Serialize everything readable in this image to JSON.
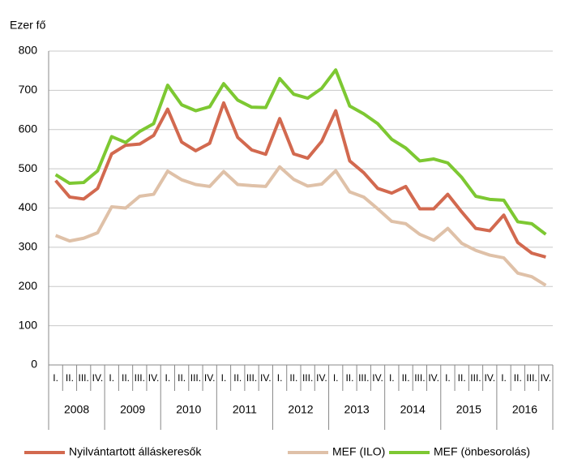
{
  "chart_data": {
    "type": "line",
    "y_label": "Ezer fő",
    "categories": [
      "I.",
      "II.",
      "III.",
      "IV.",
      "I.",
      "II.",
      "III.",
      "IV.",
      "I.",
      "II.",
      "III.",
      "IV.",
      "I.",
      "II.",
      "III.",
      "IV.",
      "I.",
      "II.",
      "III.",
      "IV.",
      "I.",
      "II.",
      "III.",
      "IV.",
      "I.",
      "II.",
      "III.",
      "IV.",
      "I.",
      "II.",
      "III.",
      "IV.",
      "I.",
      "II.",
      "III.",
      "IV."
    ],
    "years": [
      "2008",
      "2009",
      "2010",
      "2011",
      "2012",
      "2013",
      "2014",
      "2015",
      "2016"
    ],
    "series": [
      {
        "name": "Nyilvántartott álláskeresők",
        "color": "#d2694f",
        "values": [
          470,
          428,
          423,
          450,
          538,
          560,
          563,
          585,
          652,
          568,
          546,
          565,
          668,
          580,
          548,
          537,
          628,
          538,
          527,
          570,
          648,
          520,
          490,
          450,
          438,
          455,
          398,
          398,
          435,
          390,
          348,
          342,
          382,
          312,
          285,
          275
        ]
      },
      {
        "name": "MEF (ILO)",
        "color": "#dfc1a8",
        "values": [
          330,
          316,
          323,
          337,
          403,
          400,
          430,
          435,
          494,
          472,
          460,
          455,
          493,
          460,
          457,
          455,
          505,
          473,
          456,
          461,
          495,
          441,
          428,
          398,
          366,
          360,
          333,
          318,
          348,
          310,
          292,
          280,
          273,
          234,
          225,
          203
        ]
      },
      {
        "name": "MEF (önbesorolás)",
        "color": "#7dc832",
        "values": [
          485,
          463,
          465,
          495,
          582,
          567,
          595,
          615,
          713,
          663,
          648,
          658,
          717,
          675,
          657,
          656,
          730,
          690,
          680,
          705,
          752,
          660,
          640,
          615,
          575,
          553,
          520,
          525,
          515,
          478,
          430,
          422,
          420,
          365,
          360,
          333
        ]
      }
    ],
    "ylim": [
      0,
      800
    ],
    "yticks": [
      0,
      100,
      200,
      300,
      400,
      500,
      600,
      700,
      800
    ],
    "grid": true
  }
}
